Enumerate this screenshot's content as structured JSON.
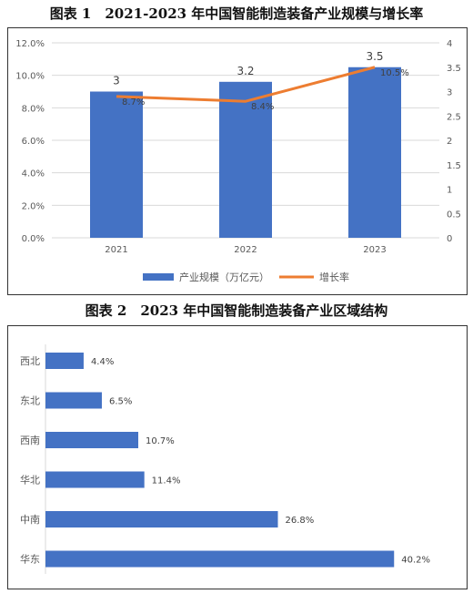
{
  "captions": {
    "chart1": "图表 1　2021-2023 年中国智能制造装备产业规模与增长率",
    "chart2": "图表 2　2023 年中国智能制造装备产业区域结构"
  },
  "colors": {
    "bar": "#4472C4",
    "line": "#ED7D31",
    "grid": "#D9D9D9",
    "axis_text": "#595959"
  },
  "chart_data": [
    {
      "type": "bar",
      "categories": [
        "2021",
        "2022",
        "2023"
      ],
      "series": [
        {
          "name": "产业规模（万亿元）",
          "type": "bar",
          "axis": "right",
          "values": [
            3,
            3.2,
            3.5
          ],
          "labels": [
            "3",
            "3.2",
            "3.5"
          ]
        },
        {
          "name": "增长率",
          "type": "line",
          "axis": "left",
          "values": [
            8.7,
            8.4,
            10.5
          ],
          "labels": [
            "8.7%",
            "8.4%",
            "10.5%"
          ]
        }
      ],
      "y_left": {
        "ylim": [
          0,
          12
        ],
        "ticks": [
          "0.0%",
          "2.0%",
          "4.0%",
          "6.0%",
          "8.0%",
          "10.0%",
          "12.0%"
        ]
      },
      "y_right": {
        "ylim": [
          0,
          4
        ],
        "ticks": [
          "0",
          "0.5",
          "1",
          "1.5",
          "2",
          "2.5",
          "3",
          "3.5",
          "4"
        ]
      },
      "grid": true,
      "legend": "bottom"
    },
    {
      "type": "bar",
      "orientation": "horizontal",
      "categories": [
        "西北",
        "东北",
        "西南",
        "华北",
        "中南",
        "华东"
      ],
      "values": [
        4.4,
        6.5,
        10.7,
        11.4,
        26.8,
        40.2
      ],
      "labels": [
        "4.4%",
        "6.5%",
        "10.7%",
        "11.4%",
        "26.8%",
        "40.2%"
      ],
      "xlim": [
        0,
        45
      ],
      "grid": false
    }
  ]
}
